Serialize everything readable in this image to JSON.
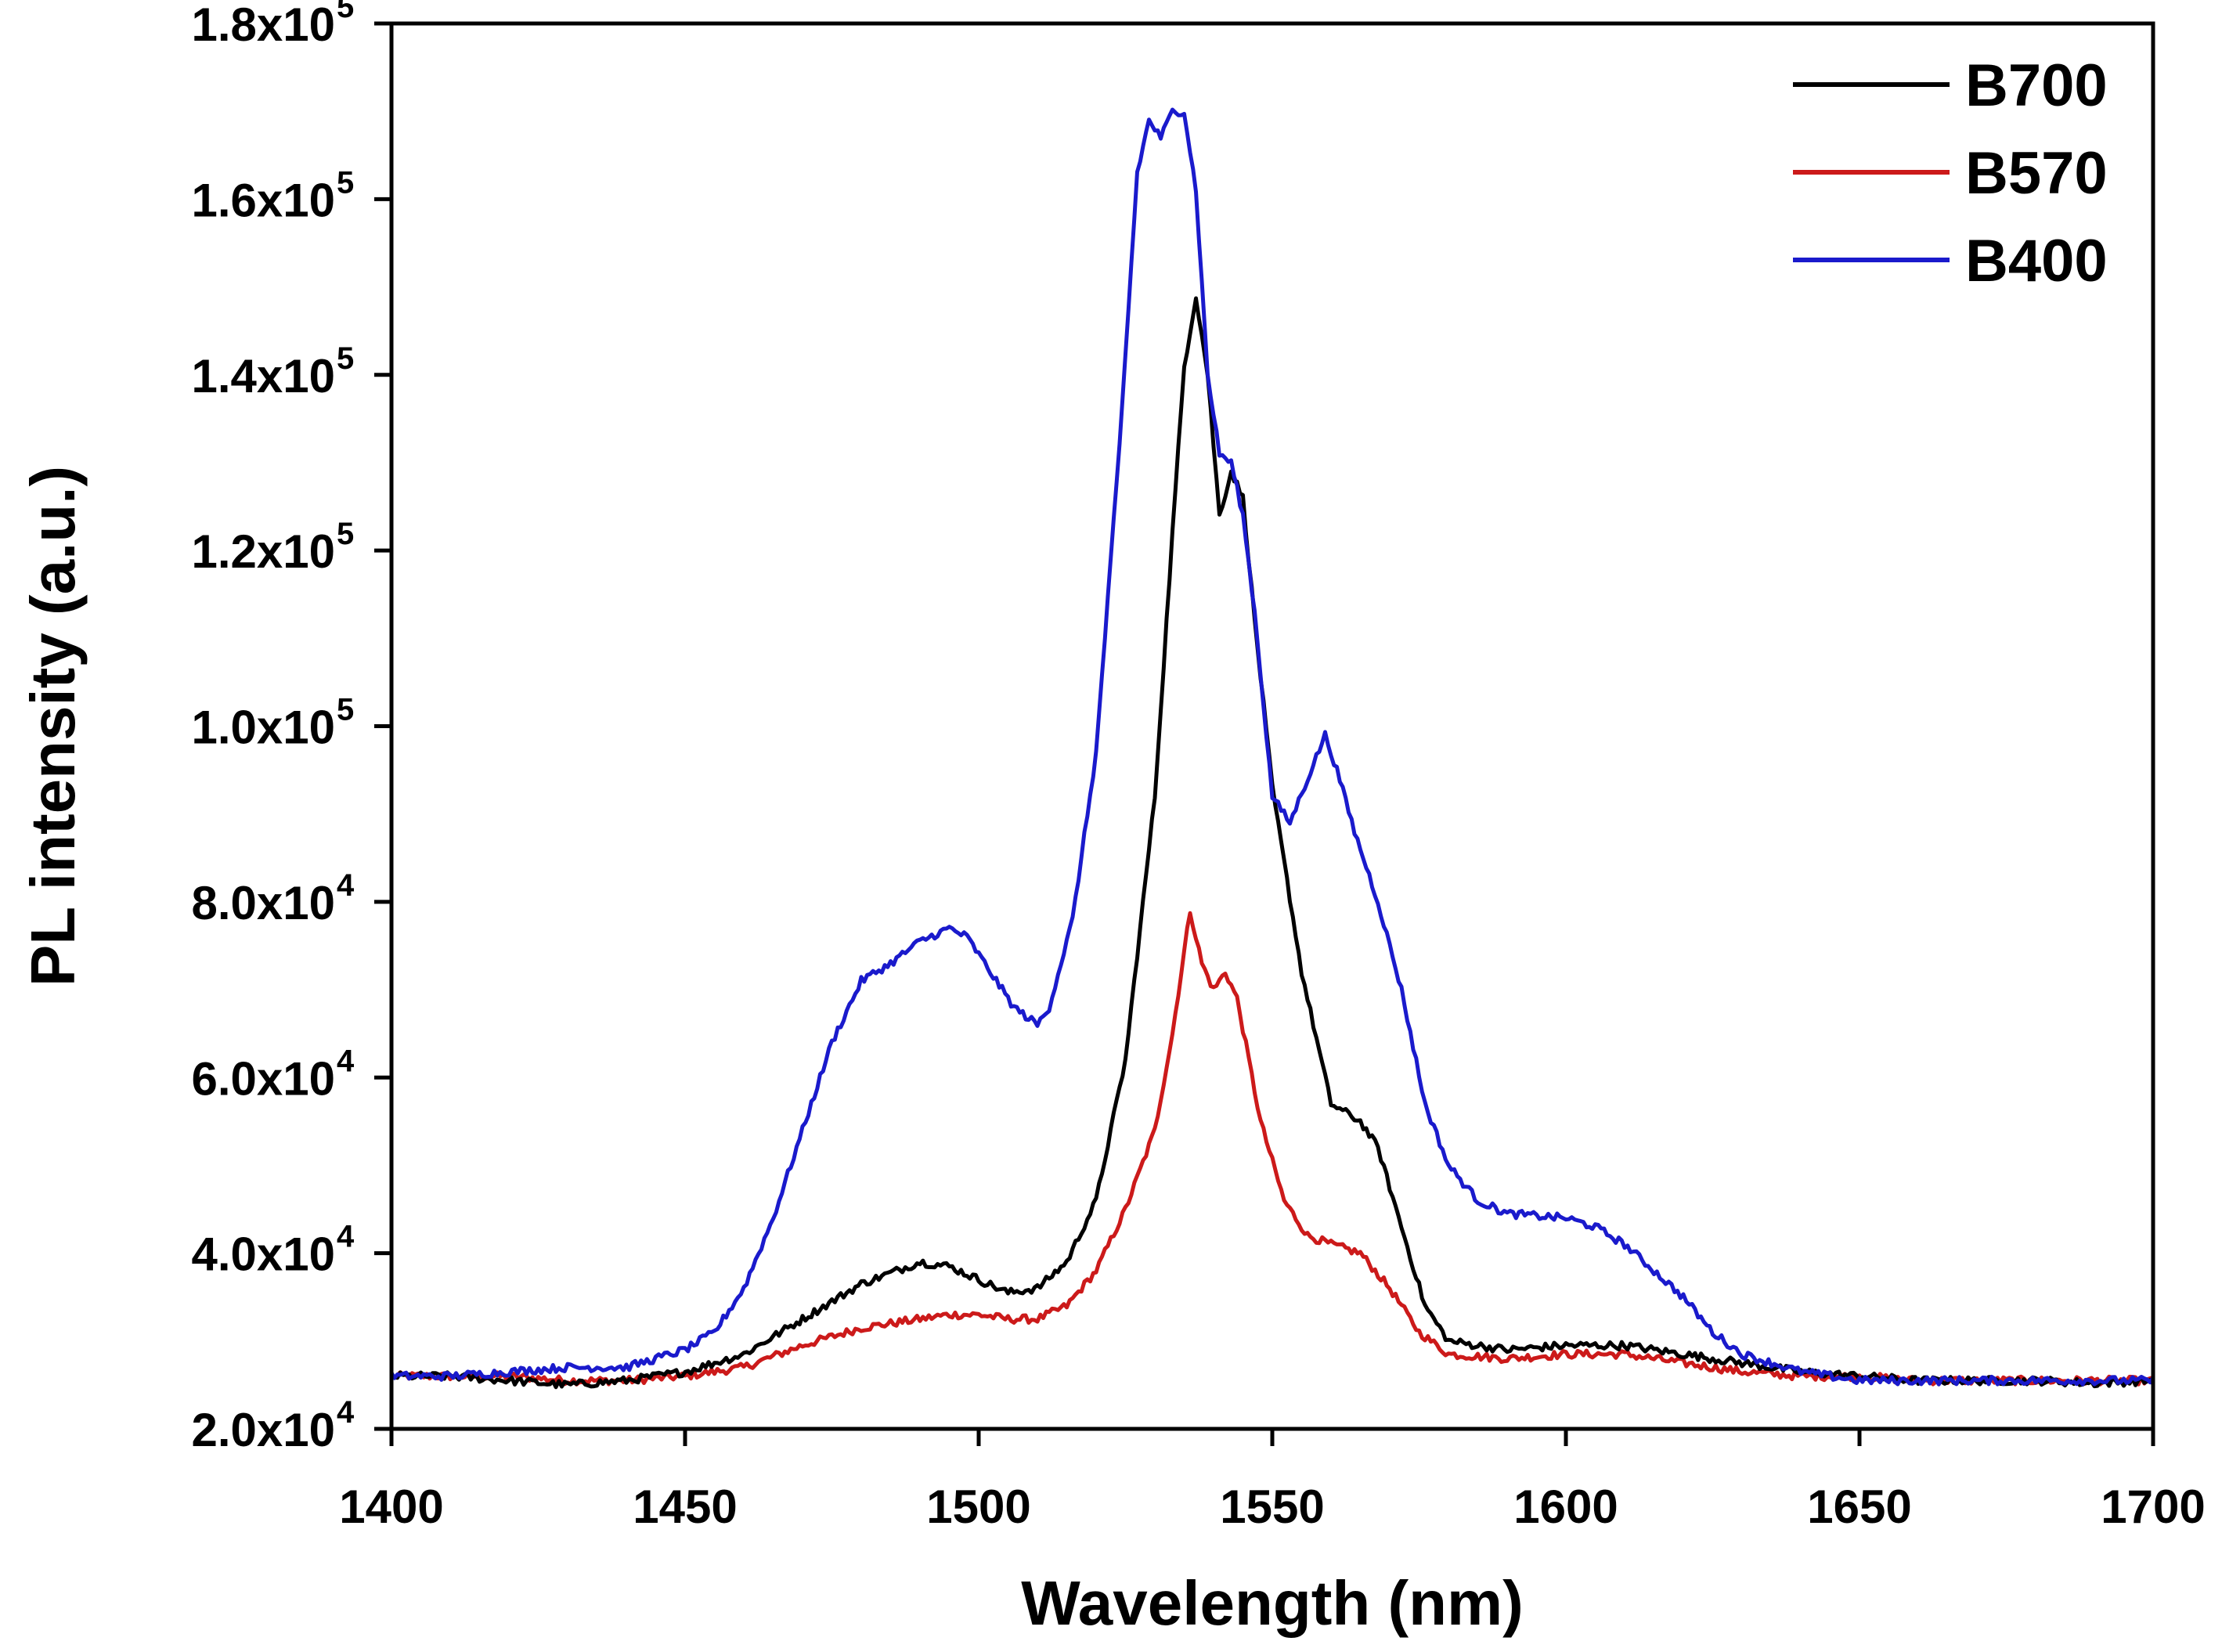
{
  "chart_data": {
    "type": "line",
    "title": "",
    "xlabel": "Wavelength (nm)",
    "ylabel": "PL intensity (a.u.)",
    "xlim": [
      1400,
      1700
    ],
    "ylim": [
      20000,
      180000
    ],
    "grid": false,
    "legend_position": "top-right",
    "x_ticks": [
      {
        "value": 1400,
        "label": "1400"
      },
      {
        "value": 1450,
        "label": "1450"
      },
      {
        "value": 1500,
        "label": "1500"
      },
      {
        "value": 1550,
        "label": "1550"
      },
      {
        "value": 1600,
        "label": "1600"
      },
      {
        "value": 1650,
        "label": "1650"
      },
      {
        "value": 1700,
        "label": "1700"
      }
    ],
    "y_ticks": [
      {
        "value": 20000,
        "mantissa": "2.0x10",
        "exponent": "4"
      },
      {
        "value": 40000,
        "mantissa": "4.0x10",
        "exponent": "4"
      },
      {
        "value": 60000,
        "mantissa": "6.0x10",
        "exponent": "4"
      },
      {
        "value": 80000,
        "mantissa": "8.0x10",
        "exponent": "4"
      },
      {
        "value": 100000,
        "mantissa": "1.0x10",
        "exponent": "5"
      },
      {
        "value": 120000,
        "mantissa": "1.2x10",
        "exponent": "5"
      },
      {
        "value": 140000,
        "mantissa": "1.4x10",
        "exponent": "5"
      },
      {
        "value": 160000,
        "mantissa": "1.6x10",
        "exponent": "5"
      },
      {
        "value": 180000,
        "mantissa": "1.8x10",
        "exponent": "5"
      }
    ],
    "series": [
      {
        "name": "B700",
        "color": "#000000",
        "x": [
          1400,
          1410,
          1420,
          1430,
          1440,
          1450,
          1460,
          1470,
          1480,
          1490,
          1495,
          1500,
          1505,
          1510,
          1515,
          1520,
          1525,
          1530,
          1533,
          1535,
          1537,
          1539,
          1541,
          1543,
          1545,
          1547,
          1550,
          1555,
          1560,
          1565,
          1568,
          1572,
          1576,
          1580,
          1590,
          1600,
          1610,
          1620,
          1630,
          1640,
          1650,
          1660,
          1670,
          1680,
          1690,
          1700
        ],
        "y": [
          26000,
          26000,
          25500,
          25000,
          25500,
          26500,
          28500,
          32500,
          36500,
          39000,
          38500,
          37000,
          35500,
          36000,
          39000,
          46000,
          62000,
          92000,
          122000,
          141000,
          149000,
          140000,
          124000,
          129000,
          126000,
          112000,
          93000,
          72000,
          57000,
          55000,
          52000,
          43000,
          34000,
          30000,
          29000,
          29500,
          29500,
          28500,
          27500,
          26500,
          26000,
          25500,
          25500,
          25500,
          25200,
          25500
        ]
      },
      {
        "name": "B570",
        "color": "#cc1a1a",
        "x": [
          1400,
          1410,
          1420,
          1430,
          1440,
          1450,
          1460,
          1470,
          1480,
          1490,
          1495,
          1500,
          1505,
          1510,
          1515,
          1520,
          1525,
          1530,
          1533,
          1536,
          1538,
          1540,
          1542,
          1544,
          1546,
          1548,
          1552,
          1556,
          1560,
          1565,
          1570,
          1575,
          1580,
          1590,
          1600,
          1610,
          1620,
          1630,
          1640,
          1650,
          1660,
          1670,
          1680,
          1690,
          1700
        ],
        "y": [
          26000,
          26000,
          26000,
          25500,
          25500,
          26000,
          27000,
          29500,
          31500,
          32500,
          33000,
          33000,
          32500,
          32500,
          34000,
          38000,
          45000,
          54000,
          65000,
          79000,
          73000,
          70000,
          72000,
          69000,
          62000,
          55000,
          46000,
          42000,
          41000,
          40000,
          36000,
          31000,
          28500,
          28000,
          28500,
          28500,
          27500,
          26500,
          26000,
          26000,
          25500,
          25500,
          25500,
          25500,
          25500
        ]
      },
      {
        "name": "B400",
        "color": "#1a1acc",
        "x": [
          1400,
          1410,
          1420,
          1430,
          1440,
          1450,
          1455,
          1460,
          1465,
          1470,
          1475,
          1480,
          1485,
          1490,
          1495,
          1498,
          1502,
          1506,
          1510,
          1512,
          1516,
          1520,
          1524,
          1527,
          1529,
          1531,
          1533,
          1535,
          1537,
          1539,
          1541,
          1543,
          1545,
          1547,
          1550,
          1553,
          1556,
          1559,
          1561,
          1564,
          1568,
          1572,
          1576,
          1580,
          1585,
          1590,
          1600,
          1605,
          1610,
          1615,
          1620,
          1625,
          1630,
          1640,
          1650,
          1660,
          1670,
          1680,
          1690,
          1700
        ],
        "y": [
          26000,
          26000,
          26500,
          27000,
          27000,
          29000,
          31000,
          36000,
          44000,
          54000,
          64000,
          71000,
          73000,
          75500,
          77000,
          76000,
          72000,
          68000,
          66000,
          68000,
          78000,
          97000,
          132000,
          163000,
          169000,
          167000,
          170000,
          170000,
          161000,
          140000,
          131000,
          130000,
          124000,
          113000,
          92000,
          89000,
          94000,
          99000,
          95000,
          88000,
          80000,
          70000,
          57000,
          50000,
          46000,
          44500,
          44000,
          43000,
          41000,
          38000,
          35000,
          31000,
          28500,
          26500,
          25500,
          25500,
          25500,
          25500,
          25500,
          25500
        ]
      }
    ]
  }
}
